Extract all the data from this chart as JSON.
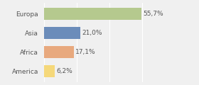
{
  "categories": [
    "Europa",
    "Asia",
    "Africa",
    "America"
  ],
  "values": [
    55.7,
    21.0,
    17.1,
    6.2
  ],
  "labels": [
    "55,7%",
    "21,0%",
    "17,1%",
    "6,2%"
  ],
  "bar_colors": [
    "#b5c98e",
    "#6b8cba",
    "#e8a97e",
    "#f5d87a"
  ],
  "background_color": "#f0f0f0",
  "xlim": [
    0,
    75
  ],
  "bar_height": 0.65,
  "label_fontsize": 6.5,
  "category_fontsize": 6.5
}
